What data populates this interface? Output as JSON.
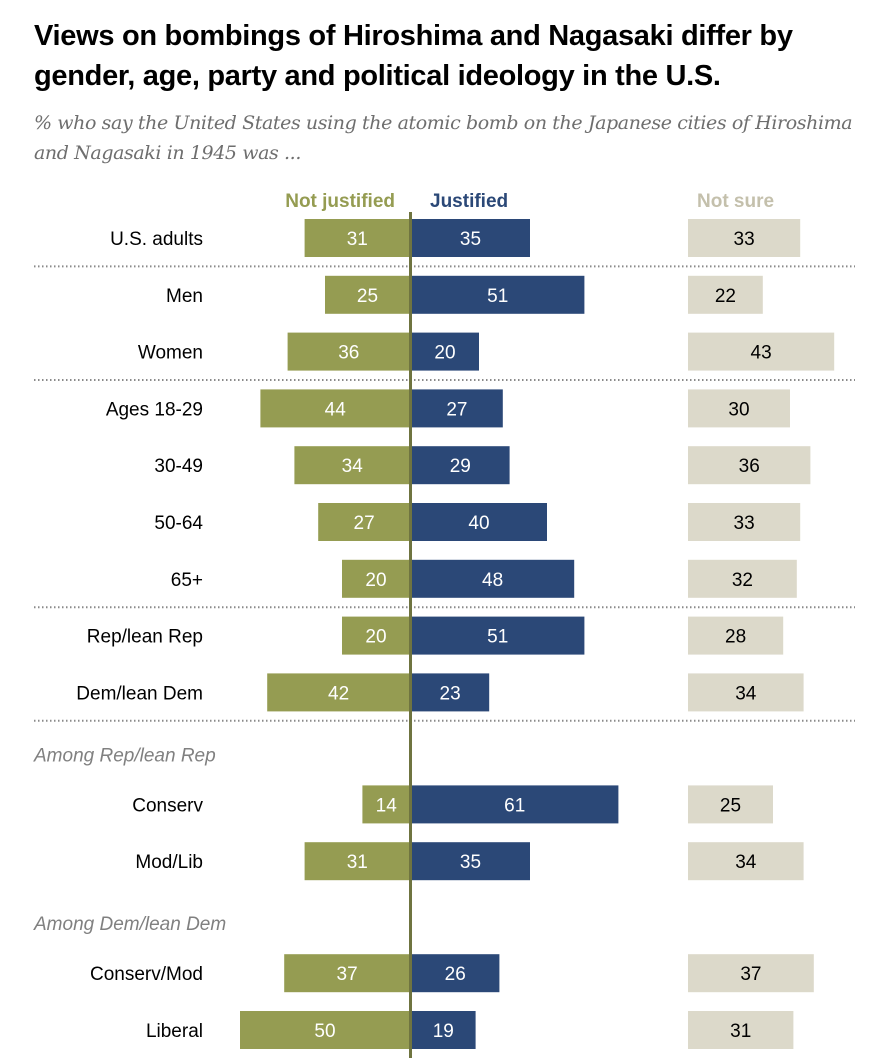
{
  "title": "Views on bombings of Hiroshima and Nagasaki differ by gender, age, party and political ideology in the U.S.",
  "subtitle": "% who say the United States using the atomic bomb on the Japanese cities of Hiroshima and Nagasaki in 1945 was ...",
  "colors": {
    "not_justified": "#959C52",
    "justified": "#2B4877",
    "not_sure": "#DCD9CA",
    "axis": "#6F7440",
    "divider": "#8a8a8a"
  },
  "chart_data": {
    "type": "bar",
    "orientation": "horizontal-diverging",
    "title": "Views on bombings of Hiroshima and Nagasaki differ by gender, age, party and political ideology in the U.S.",
    "subtitle": "% who say the United States using the atomic bomb on the Japanese cities of Hiroshima and Nagasaki in 1945 was ...",
    "series_labels": {
      "not_justified": "Not justified",
      "justified": "Justified",
      "not_sure": "Not sure"
    },
    "rows": [
      {
        "label": "U.S. adults",
        "not_justified": 31,
        "justified": 35,
        "not_sure": 33,
        "divider_after": true
      },
      {
        "label": "Men",
        "not_justified": 25,
        "justified": 51,
        "not_sure": 22
      },
      {
        "label": "Women",
        "not_justified": 36,
        "justified": 20,
        "not_sure": 43,
        "divider_after": true
      },
      {
        "label": "Ages 18-29",
        "not_justified": 44,
        "justified": 27,
        "not_sure": 30
      },
      {
        "label": "30-49",
        "not_justified": 34,
        "justified": 29,
        "not_sure": 36
      },
      {
        "label": "50-64",
        "not_justified": 27,
        "justified": 40,
        "not_sure": 33
      },
      {
        "label": "65+",
        "not_justified": 20,
        "justified": 48,
        "not_sure": 32,
        "divider_after": true
      },
      {
        "label": "Rep/lean Rep",
        "not_justified": 20,
        "justified": 51,
        "not_sure": 28
      },
      {
        "label": "Dem/lean Dem",
        "not_justified": 42,
        "justified": 23,
        "not_sure": 34,
        "divider_after": true
      },
      {
        "group_label": "Among Rep/lean Rep"
      },
      {
        "label": "Conserv",
        "not_justified": 14,
        "justified": 61,
        "not_sure": 25
      },
      {
        "label": "Mod/Lib",
        "not_justified": 31,
        "justified": 35,
        "not_sure": 34
      },
      {
        "group_label": "Among Dem/lean Dem"
      },
      {
        "label": "Conserv/Mod",
        "not_justified": 37,
        "justified": 26,
        "not_sure": 37
      },
      {
        "label": "Liberal",
        "not_justified": 50,
        "justified": 19,
        "not_sure": 31
      }
    ],
    "xlabel": "",
    "ylabel": "",
    "grid": false
  }
}
